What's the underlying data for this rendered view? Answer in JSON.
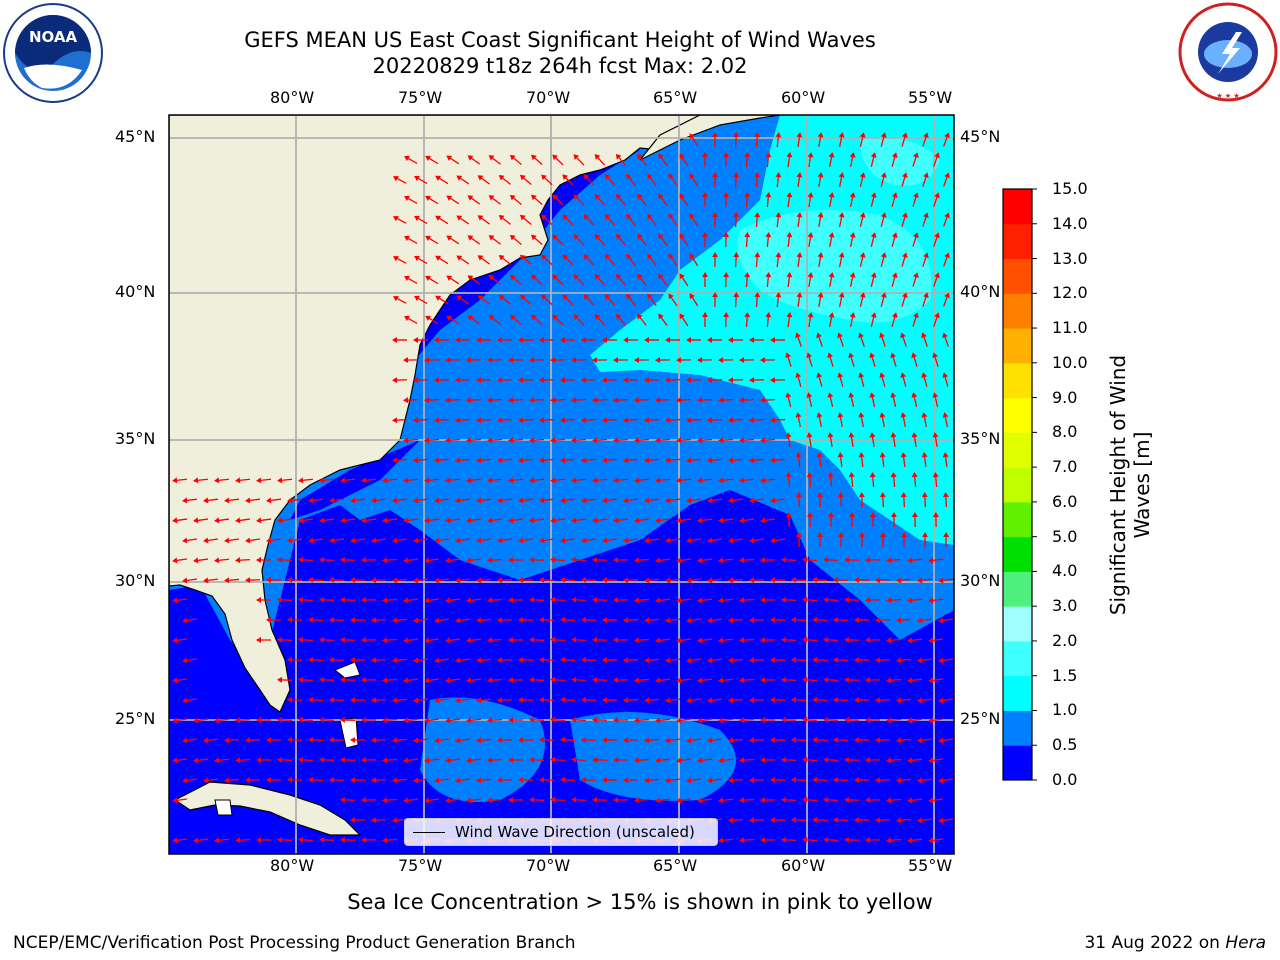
{
  "title": {
    "line1": "GEFS MEAN US East Coast Significant Height of Wind Waves",
    "line2": "20220829 t18z 264h fcst   Max: 2.02"
  },
  "logos": {
    "left": {
      "icon": "noaa-logo",
      "text": "NOAA"
    },
    "right": {
      "icon": "nws-logo",
      "text": "NATIONAL WEATHER SERVICE"
    }
  },
  "map": {
    "projection": "PlateCarree",
    "lon_range": [
      -85,
      -54.2
    ],
    "lat_range": [
      20.5,
      46
    ],
    "lon_ticks": [
      "80°W",
      "75°W",
      "70°W",
      "65°W",
      "60°W",
      "55°W"
    ],
    "lat_ticks": [
      "45°N",
      "40°N",
      "35°N",
      "30°N",
      "25°N"
    ],
    "gridlines": true,
    "arrow_color": "#ff0000",
    "land_color": "#efefdb"
  },
  "colorbar": {
    "label": "Significant Height of Wind Waves [m]",
    "ticks": [
      "15.0",
      "14.0",
      "13.0",
      "12.0",
      "11.0",
      "10.0",
      "9.0",
      "8.0",
      "7.0",
      "6.0",
      "5.0",
      "4.0",
      "3.0",
      "2.0",
      "1.5",
      "1.0",
      "0.5",
      "0.0"
    ],
    "colors": [
      "#0000ff",
      "#0080ff",
      "#00ffff",
      "#40ffff",
      "#a0ffff",
      "#50f080",
      "#00e000",
      "#60f000",
      "#c0ff00",
      "#e0ff00",
      "#ffff00",
      "#ffe000",
      "#ffb000",
      "#ff8000",
      "#ff5000",
      "#ff2000",
      "#ff0000"
    ]
  },
  "chart_data": {
    "type": "heatmap",
    "variable": "Significant Height of Wind Waves",
    "unit": "m",
    "max": 2.02,
    "levels": [
      0.0,
      0.5,
      1.0,
      1.5,
      2.0,
      3.0,
      4.0,
      5.0,
      6.0,
      7.0,
      8.0,
      9.0,
      10.0,
      11.0,
      12.0,
      13.0,
      14.0,
      15.0
    ]
  },
  "legend": {
    "label": "Wind Wave Direction (unscaled)"
  },
  "ice_note": "Sea Ice Concentration > 15% is shown in pink to yellow",
  "footer": {
    "left": "NCEP/EMC/Verification Post Processing Product Generation Branch",
    "right_date": "31 Aug 2022 on ",
    "right_machine": "Hera"
  }
}
